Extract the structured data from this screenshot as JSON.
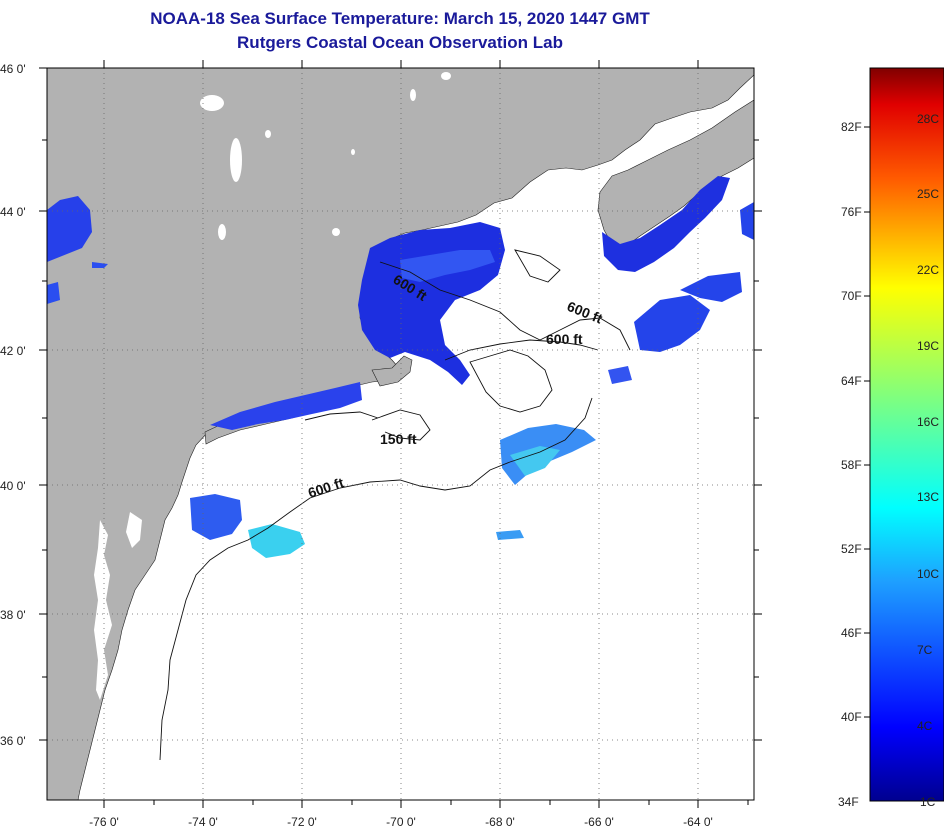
{
  "header": {
    "title": "NOAA-18 Sea Surface Temperature:  March 15, 2020 1447 GMT",
    "subtitle": "Rutgers Coastal Ocean Observation Lab"
  },
  "map": {
    "lat_labels": [
      "46 0'",
      "44 0'",
      "42 0'",
      "40 0'",
      "38 0'",
      "36 0'"
    ],
    "lon_labels": [
      "-76 0'",
      "-74 0'",
      "-72 0'",
      "-70 0'",
      "-68 0'",
      "-66 0'",
      "-64 0'"
    ],
    "contour_labels": {
      "gulf_maine": "600 ft",
      "georges": "600 ft",
      "shelf_150": "150 ft",
      "shelf_600": "600 ft"
    },
    "colors": {
      "land": "#b2b2b2",
      "ocean": "#ffffff",
      "cold": "#2438e8",
      "deep_cold": "#1515c8",
      "cyan": "#3ad0f0"
    }
  },
  "colorbar": {
    "fahrenheit_labels": [
      "82F",
      "76F",
      "70F",
      "64F",
      "58F",
      "52F",
      "46F",
      "40F",
      "34F"
    ],
    "celsius_labels": [
      "28C",
      "25C",
      "22C",
      "19C",
      "16C",
      "13C",
      "10C",
      "7C",
      "4C",
      "1C"
    ]
  }
}
